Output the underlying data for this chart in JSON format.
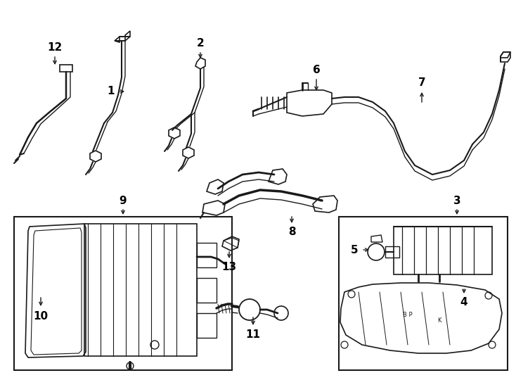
{
  "background_color": "#ffffff",
  "line_color": "#1a1a1a",
  "fig_width": 7.34,
  "fig_height": 5.4,
  "dpi": 100,
  "xlim": [
    0,
    734
  ],
  "ylim": [
    0,
    540
  ]
}
